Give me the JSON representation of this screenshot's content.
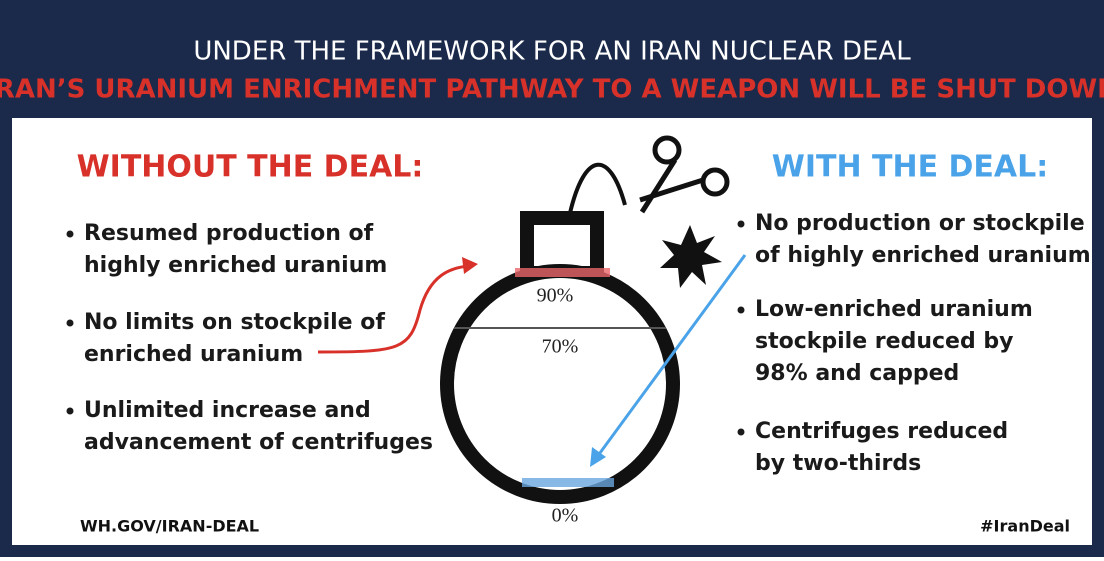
{
  "header": {
    "title": "UNDER THE FRAMEWORK FOR AN IRAN NUCLEAR DEAL",
    "subtitle": "IRAN’S URANIUM ENRICHMENT PATHWAY TO A WEAPON WILL BE SHUT DOWN"
  },
  "left": {
    "heading": "WITHOUT THE DEAL:",
    "bullets": [
      [
        "Resumed production of",
        "highly enriched uranium"
      ],
      [
        "No limits on stockpile of",
        "enriched uranium"
      ],
      [
        "Unlimited increase and",
        "advancement of centrifuges"
      ]
    ]
  },
  "right": {
    "heading": "WITH THE DEAL:",
    "bullets": [
      [
        "No production or stockpile",
        "of highly enriched uranium"
      ],
      [
        "Low-enriched uranium",
        "stockpile reduced by",
        "98% and capped"
      ],
      [
        "Centrifuges reduced",
        "by two-thirds"
      ]
    ]
  },
  "bomb": {
    "labels": [
      "90%",
      "70%",
      "0%"
    ]
  },
  "footer": {
    "left": "WH.GOV/IRAN-DEAL",
    "right": "#IranDeal"
  }
}
